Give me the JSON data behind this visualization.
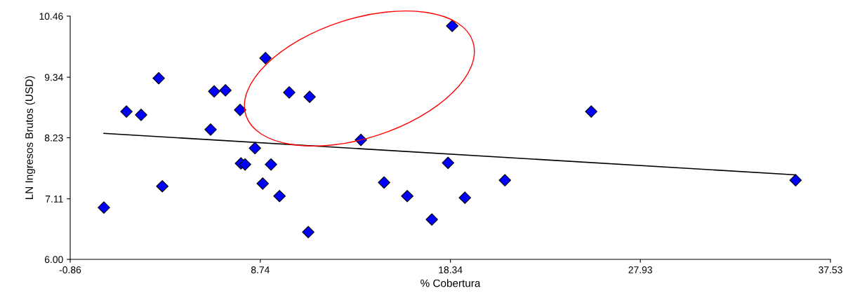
{
  "chart_data": {
    "type": "scatter",
    "xlabel": "% Cobertura",
    "ylabel": "LN Ingresos Brutos (USD)",
    "xlim": [
      -0.86,
      37.53
    ],
    "xticks": [
      -0.86,
      8.74,
      18.34,
      27.93,
      37.53
    ],
    "ylim": [
      6.0,
      10.46
    ],
    "yticks": [
      {
        "value": 6.0,
        "label": "6.00"
      },
      7.11,
      8.23,
      9.34,
      10.46
    ],
    "grid": false,
    "marker": "diamond",
    "series": [
      {
        "color": "#0000ff",
        "x": [
          0.84,
          1.98,
          2.72,
          3.61,
          3.79,
          6.23,
          6.41,
          6.98,
          7.72,
          7.76,
          7.97,
          8.47,
          8.86,
          9.0,
          9.28,
          9.71,
          10.2,
          11.16,
          11.23,
          13.82,
          14.99,
          16.16,
          17.4,
          18.22,
          18.43,
          19.07,
          21.09,
          25.45,
          35.77
        ],
        "values": [
          6.95,
          8.71,
          8.65,
          9.32,
          7.34,
          8.38,
          9.08,
          9.1,
          8.74,
          7.76,
          7.74,
          8.04,
          7.39,
          9.69,
          7.74,
          7.16,
          9.06,
          6.5,
          8.98,
          8.19,
          7.41,
          7.16,
          6.73,
          7.77,
          10.28,
          7.13,
          7.45,
          8.71,
          7.45
        ]
      },
      {
        "type": "line",
        "color": "#000000",
        "marker": "none",
        "x": [
          0.84,
          35.77
        ],
        "values": [
          8.31,
          7.55
        ]
      }
    ]
  }
}
